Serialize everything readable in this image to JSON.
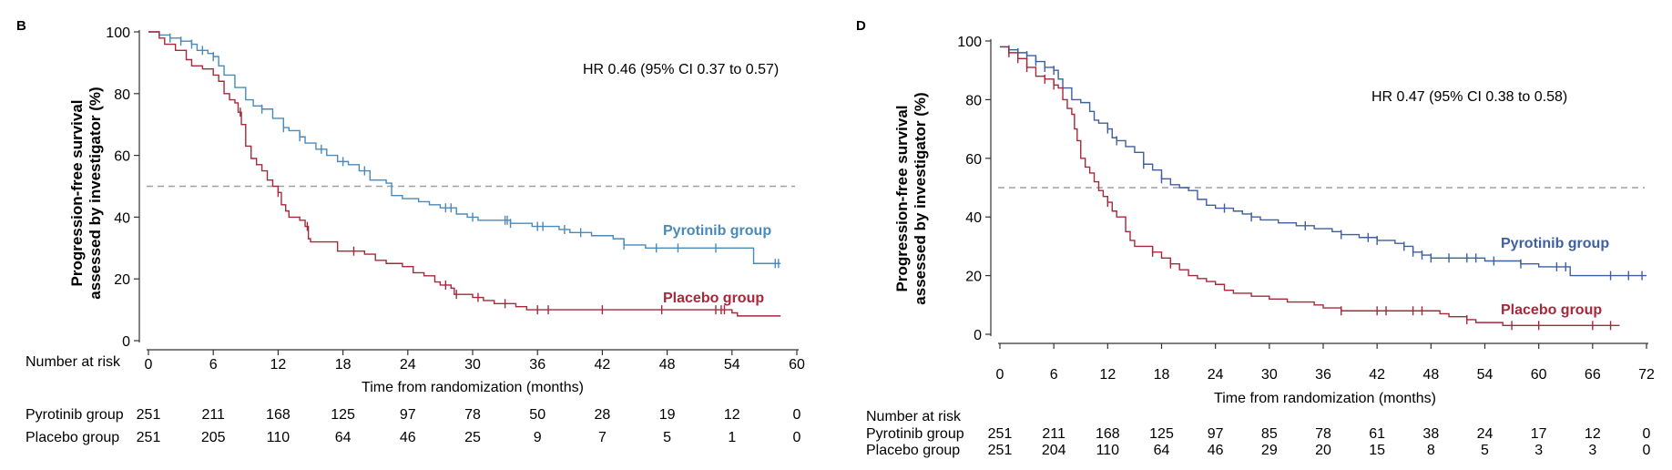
{
  "colors": {
    "pyrotinib": "#4a8ab8",
    "pyrotinib_d": "#3f5f9e",
    "placebo": "#a8283b",
    "refline": "#a0a0a0",
    "axis": "#333333"
  },
  "panel_b": {
    "label": "B",
    "hr_text": "HR 0.46 (95% CI 0.37 to 0.57)",
    "risk_title": "Number at risk",
    "risk_rows": [
      {
        "label": "Pyrotinib group",
        "values": [
          "251",
          "211",
          "168",
          "125",
          "97",
          "78",
          "50",
          "28",
          "19",
          "12",
          "0"
        ]
      },
      {
        "label": "Placebo group",
        "values": [
          "251",
          "205",
          "110",
          "64",
          "46",
          "25",
          "9",
          "7",
          "5",
          "1",
          "0"
        ]
      }
    ]
  },
  "panel_d": {
    "label": "D",
    "hr_text": "HR 0.47 (95% CI 0.38 to 0.58)",
    "risk_title": "Number at risk",
    "risk_rows": [
      {
        "label": "Pyrotinib group",
        "values": [
          "251",
          "211",
          "168",
          "125",
          "97",
          "85",
          "78",
          "61",
          "38",
          "24",
          "17",
          "12",
          "0"
        ]
      },
      {
        "label": "Placebo group",
        "values": [
          "251",
          "204",
          "110",
          "64",
          "46",
          "29",
          "20",
          "15",
          "8",
          "5",
          "3",
          "3",
          "0"
        ]
      }
    ]
  },
  "chart_data": [
    {
      "type": "line",
      "subtype": "kaplan-meier step",
      "panel": "B",
      "title": "",
      "xlabel": "Time from randomization (months)",
      "ylabel": "Progression-free survival assessed by investigator (%)",
      "xlim": [
        0,
        60
      ],
      "ylim": [
        0,
        100
      ],
      "xticks": [
        0,
        6,
        12,
        18,
        24,
        30,
        36,
        42,
        48,
        54,
        60
      ],
      "yticks": [
        0,
        20,
        40,
        60,
        80,
        100
      ],
      "reference_line_y": 50,
      "annotation": "HR 0.46 (95% CI 0.37 to 0.57)",
      "series": [
        {
          "name": "Pyrotinib group",
          "legend_position": "right",
          "points": [
            [
              0,
              100
            ],
            [
              1,
              99
            ],
            [
              2,
              98
            ],
            [
              3,
              97
            ],
            [
              4,
              96
            ],
            [
              4.5,
              94
            ],
            [
              5.5,
              93
            ],
            [
              6,
              92
            ],
            [
              6.5,
              89
            ],
            [
              7,
              86
            ],
            [
              8,
              82
            ],
            [
              9,
              78
            ],
            [
              9.7,
              76
            ],
            [
              10.5,
              75
            ],
            [
              11,
              75
            ],
            [
              11.5,
              72
            ],
            [
              12.5,
              69
            ],
            [
              13,
              68
            ],
            [
              14,
              66
            ],
            [
              14.5,
              64
            ],
            [
              15.5,
              62
            ],
            [
              16.5,
              60
            ],
            [
              17.5,
              58
            ],
            [
              18.5,
              57
            ],
            [
              19,
              57
            ],
            [
              19.5,
              55
            ],
            [
              20.5,
              52
            ],
            [
              22,
              51
            ],
            [
              22.5,
              47
            ],
            [
              23.5,
              46
            ],
            [
              25,
              45
            ],
            [
              26,
              44
            ],
            [
              27,
              43
            ],
            [
              28,
              43
            ],
            [
              28.5,
              41
            ],
            [
              29.5,
              40
            ],
            [
              30.5,
              39
            ],
            [
              33,
              39
            ],
            [
              33.5,
              38
            ],
            [
              35.5,
              37
            ],
            [
              38,
              36
            ],
            [
              39,
              35
            ],
            [
              41,
              34
            ],
            [
              43,
              33
            ],
            [
              44,
              31
            ],
            [
              46,
              30
            ],
            [
              48,
              30
            ],
            [
              50,
              30
            ],
            [
              52,
              30
            ],
            [
              53.5,
              30
            ],
            [
              55.5,
              30
            ],
            [
              56,
              25
            ],
            [
              58.5,
              25
            ]
          ],
          "censor_x": [
            2,
            3,
            4,
            5,
            6,
            10.5,
            12.5,
            14,
            16,
            18,
            20,
            27.5,
            28,
            30,
            33,
            33.2,
            33.5,
            36,
            36.5,
            38.5,
            40,
            44,
            47,
            49,
            52.5,
            58,
            58.3
          ]
        },
        {
          "name": "Placebo group",
          "legend_position": "right",
          "points": [
            [
              0,
              100
            ],
            [
              1,
              98
            ],
            [
              1.5,
              96
            ],
            [
              2.5,
              94
            ],
            [
              3.5,
              91
            ],
            [
              4,
              89
            ],
            [
              5,
              88
            ],
            [
              6,
              86
            ],
            [
              6.5,
              84
            ],
            [
              7,
              80
            ],
            [
              7.5,
              78
            ],
            [
              8,
              77
            ],
            [
              8.3,
              74
            ],
            [
              8.6,
              70
            ],
            [
              9,
              63
            ],
            [
              9.5,
              59
            ],
            [
              10,
              57
            ],
            [
              10.5,
              55
            ],
            [
              11,
              52
            ],
            [
              11.5,
              50
            ],
            [
              12,
              48
            ],
            [
              12.3,
              44
            ],
            [
              12.7,
              42
            ],
            [
              13,
              40
            ],
            [
              14,
              39
            ],
            [
              14.5,
              37
            ],
            [
              14.8,
              33
            ],
            [
              15,
              32
            ],
            [
              17,
              32
            ],
            [
              17.5,
              29
            ],
            [
              18.5,
              29
            ],
            [
              20,
              28
            ],
            [
              21,
              26
            ],
            [
              22,
              25
            ],
            [
              23.5,
              24
            ],
            [
              24.5,
              22
            ],
            [
              25.5,
              21
            ],
            [
              26.5,
              19
            ],
            [
              27,
              18
            ],
            [
              28,
              17
            ],
            [
              28.3,
              15
            ],
            [
              30,
              14
            ],
            [
              31,
              13
            ],
            [
              32,
              12
            ],
            [
              34,
              11
            ],
            [
              35,
              10
            ],
            [
              41,
              10
            ],
            [
              44,
              10
            ],
            [
              47,
              10
            ],
            [
              51,
              10
            ],
            [
              52,
              10
            ],
            [
              54,
              9
            ],
            [
              54.5,
              8
            ],
            [
              58.5,
              8
            ]
          ],
          "censor_x": [
            8.5,
            12,
            14.7,
            19,
            27.5,
            28.5,
            30.5,
            33,
            36,
            37,
            42,
            47.5,
            52.5,
            53,
            53.3
          ]
        }
      ]
    },
    {
      "type": "line",
      "subtype": "kaplan-meier step",
      "panel": "D",
      "title": "",
      "xlabel": "Time from randomization (months)",
      "ylabel": "Progression-free survival assessed by investigator (%)",
      "xlim": [
        0,
        72
      ],
      "ylim": [
        0,
        100
      ],
      "xticks": [
        0,
        6,
        12,
        18,
        24,
        30,
        36,
        42,
        48,
        54,
        60,
        66,
        72
      ],
      "yticks": [
        0,
        20,
        40,
        60,
        80,
        100
      ],
      "reference_line_y": 50,
      "annotation": "HR 0.47 (95% CI 0.38 to 0.58)",
      "series": [
        {
          "name": "Pyrotinib group",
          "legend_position": "right",
          "points": [
            [
              0,
              98
            ],
            [
              1,
              97
            ],
            [
              2,
              96
            ],
            [
              3,
              95
            ],
            [
              4,
              93
            ],
            [
              5,
              91
            ],
            [
              6,
              90
            ],
            [
              6.5,
              87
            ],
            [
              7,
              84
            ],
            [
              8,
              80
            ],
            [
              9,
              79
            ],
            [
              10,
              76
            ],
            [
              10.5,
              73
            ],
            [
              11,
              72
            ],
            [
              12,
              70
            ],
            [
              12.5,
              67
            ],
            [
              13,
              66
            ],
            [
              14,
              64
            ],
            [
              15,
              62
            ],
            [
              16,
              58
            ],
            [
              17,
              56
            ],
            [
              18,
              53
            ],
            [
              19,
              51
            ],
            [
              20,
              50
            ],
            [
              21,
              49
            ],
            [
              22,
              46
            ],
            [
              23,
              44
            ],
            [
              24,
              43
            ],
            [
              26,
              42
            ],
            [
              27,
              41
            ],
            [
              28,
              40
            ],
            [
              29,
              39
            ],
            [
              31,
              38
            ],
            [
              33,
              37
            ],
            [
              35,
              36
            ],
            [
              37,
              35
            ],
            [
              38,
              34
            ],
            [
              40,
              33
            ],
            [
              42,
              32
            ],
            [
              44,
              31
            ],
            [
              45,
              30
            ],
            [
              46,
              28
            ],
            [
              47,
              27
            ],
            [
              48,
              26
            ],
            [
              50,
              26
            ],
            [
              52,
              26
            ],
            [
              54,
              25
            ],
            [
              56,
              25
            ],
            [
              58,
              24
            ],
            [
              60,
              23
            ],
            [
              62,
              23
            ],
            [
              63,
              23
            ],
            [
              63.5,
              20
            ],
            [
              66,
              20
            ],
            [
              72,
              20
            ]
          ],
          "censor_x": [
            1,
            2,
            3,
            4,
            5,
            6,
            12,
            13,
            16,
            18,
            25,
            28,
            34,
            38,
            41,
            42,
            45,
            46,
            47,
            48,
            50,
            52,
            53,
            55,
            58,
            62,
            63,
            68,
            70,
            71.5
          ]
        },
        {
          "name": "Placebo group",
          "legend_position": "right",
          "points": [
            [
              0,
              98
            ],
            [
              1,
              96
            ],
            [
              2,
              94
            ],
            [
              3,
              91
            ],
            [
              4,
              88
            ],
            [
              5,
              87
            ],
            [
              6,
              85
            ],
            [
              6.5,
              84
            ],
            [
              7,
              80
            ],
            [
              7.5,
              77
            ],
            [
              8,
              75
            ],
            [
              8.3,
              70
            ],
            [
              8.6,
              66
            ],
            [
              9,
              60
            ],
            [
              9.5,
              57
            ],
            [
              10,
              55
            ],
            [
              10.5,
              52
            ],
            [
              11,
              49
            ],
            [
              11.5,
              47
            ],
            [
              12,
              45
            ],
            [
              12.5,
              42
            ],
            [
              13,
              40
            ],
            [
              14,
              35
            ],
            [
              14.5,
              32
            ],
            [
              15,
              30
            ],
            [
              17,
              28
            ],
            [
              18,
              26
            ],
            [
              19,
              24
            ],
            [
              20,
              22
            ],
            [
              21,
              20
            ],
            [
              22,
              19
            ],
            [
              23,
              18
            ],
            [
              24,
              17
            ],
            [
              25,
              15
            ],
            [
              26,
              14
            ],
            [
              28,
              13
            ],
            [
              30,
              12
            ],
            [
              32,
              11
            ],
            [
              35,
              10
            ],
            [
              36,
              9
            ],
            [
              38,
              8
            ],
            [
              40,
              8
            ],
            [
              44,
              8
            ],
            [
              46,
              8
            ],
            [
              49,
              7
            ],
            [
              50,
              6
            ],
            [
              52,
              5
            ],
            [
              53,
              4
            ],
            [
              54,
              4
            ],
            [
              56,
              3
            ],
            [
              60,
              3
            ],
            [
              66,
              3
            ],
            [
              69,
              3
            ]
          ],
          "censor_x": [
            1,
            2,
            3,
            5,
            6,
            12,
            17,
            19,
            38,
            42,
            43,
            46,
            47,
            52,
            57,
            60,
            66,
            68
          ]
        }
      ]
    }
  ]
}
